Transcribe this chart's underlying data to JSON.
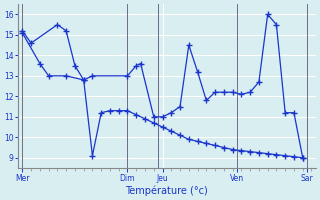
{
  "background_color": "#cce8ec",
  "grid_color": "#b0d0d8",
  "plot_bg_color": "#d8eef0",
  "line_color": "#1a35cc",
  "xlabel": "Température (°c)",
  "ylim": [
    8.5,
    16.5
  ],
  "xlim": [
    0,
    34
  ],
  "yticks": [
    9,
    10,
    11,
    12,
    13,
    14,
    15,
    16
  ],
  "day_labels": [
    "Mer",
    "Dim",
    "Jeu",
    "Ven",
    "Sar"
  ],
  "day_positions": [
    0.5,
    12.5,
    16.5,
    25.0,
    33.0
  ],
  "series1_x": [
    0.5,
    1.5,
    4.5,
    5.5,
    6.5,
    7.5,
    8.5,
    12.5,
    13.5,
    14.0,
    15.5,
    16.5,
    17.5,
    18.5,
    19.5,
    20.5,
    21.5,
    22.5,
    23.5,
    24.5,
    25.5,
    26.5,
    27.5,
    28.5,
    29.5,
    30.5,
    31.5,
    32.5
  ],
  "series1_y": [
    15.2,
    14.6,
    15.5,
    15.2,
    13.5,
    12.8,
    13.0,
    13.0,
    13.5,
    13.6,
    11.0,
    11.0,
    11.2,
    11.5,
    14.5,
    13.2,
    11.8,
    12.2,
    12.2,
    12.2,
    12.1,
    12.2,
    12.7,
    16.0,
    15.5,
    11.2,
    11.2,
    9.0
  ],
  "series2_x": [
    0.5,
    2.5,
    3.5,
    5.5,
    7.5,
    8.5,
    9.5,
    10.5,
    11.5,
    12.5,
    13.5,
    14.5,
    15.5,
    16.5,
    17.5,
    18.5,
    19.5,
    20.5,
    21.5,
    22.5,
    23.5,
    24.5,
    25.5,
    26.5,
    27.5,
    28.5,
    29.5,
    30.5,
    31.5,
    32.5
  ],
  "series2_y": [
    15.1,
    13.6,
    13.0,
    13.0,
    12.8,
    9.1,
    11.2,
    11.3,
    11.3,
    11.3,
    11.1,
    10.9,
    10.7,
    10.5,
    10.3,
    10.1,
    9.9,
    9.8,
    9.7,
    9.6,
    9.5,
    9.4,
    9.35,
    9.3,
    9.25,
    9.2,
    9.15,
    9.1,
    9.05,
    9.0
  ]
}
